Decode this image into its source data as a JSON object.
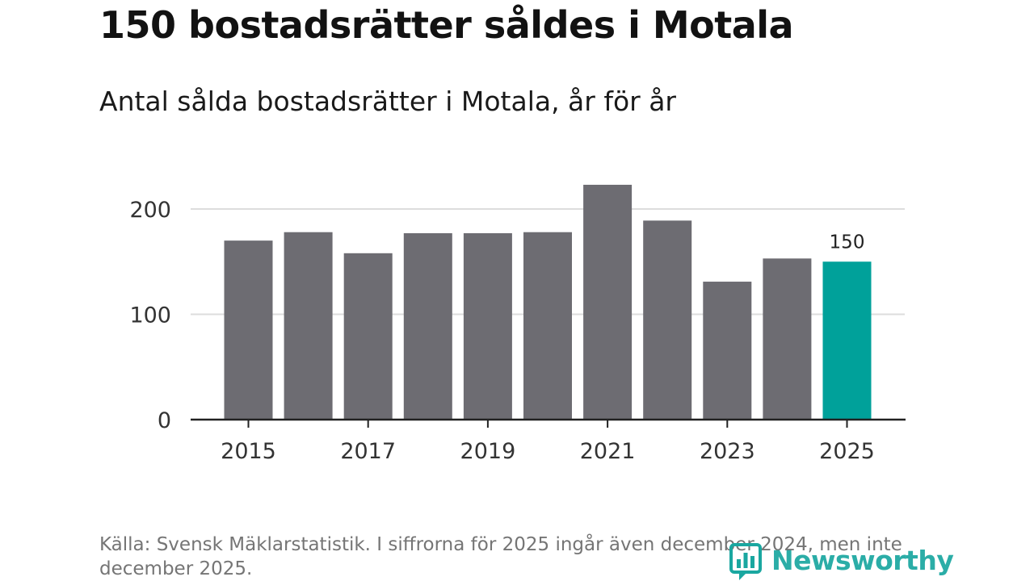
{
  "title": "150 bostadsrätter såldes i Motala",
  "subtitle": "Antal sålda bostadsrätter i Motala, år för år",
  "source": "Källa: Svensk Mäklarstatistik. I siffrorna för 2025 ingår även december 2024, men inte december 2025.",
  "brand": {
    "name": "Newsworthy",
    "color": "#1aa7a0"
  },
  "colors": {
    "bar": "#6d6c72",
    "highlight": "#00a19a",
    "grid": "#dddddd",
    "axis": "#222222"
  },
  "chart_data": {
    "type": "bar",
    "title": "150 bostadsrätter såldes i Motala",
    "subtitle": "Antal sålda bostadsrätter i Motala, år för år",
    "xlabel": "",
    "ylabel": "",
    "categories": [
      "2015",
      "2016",
      "2017",
      "2018",
      "2019",
      "2020",
      "2021",
      "2022",
      "2023",
      "2024",
      "2025"
    ],
    "values": [
      170,
      178,
      158,
      177,
      177,
      178,
      223,
      189,
      131,
      153,
      150
    ],
    "x_tick_labels": [
      "2015",
      "2017",
      "2019",
      "2021",
      "2023",
      "2025"
    ],
    "y_ticks": [
      0,
      100,
      200
    ],
    "ylim": [
      0,
      230
    ],
    "grid": true,
    "highlight_index": 10,
    "data_labels": [
      {
        "index": 10,
        "text": "150"
      }
    ]
  }
}
